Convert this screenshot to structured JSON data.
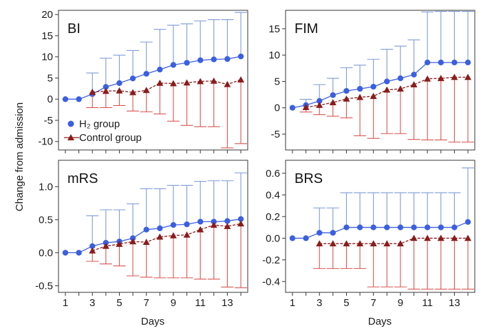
{
  "figure": {
    "ylabel": "Change from admission",
    "xlabel": "Days",
    "colors": {
      "h2": "#3b5fe0",
      "h2_err": "#7d9ad6",
      "control": "#8a1c1c",
      "control_err": "#d9534f",
      "frame": "#333333"
    }
  },
  "legend": {
    "h2_label": "H₂ group",
    "control_label": "Control group"
  },
  "chart_data": [
    {
      "id": "BI",
      "type": "line",
      "title": "BI",
      "x": [
        1,
        2,
        3,
        4,
        5,
        6,
        7,
        8,
        9,
        10,
        11,
        12,
        13,
        14
      ],
      "xticks": [
        1,
        3,
        5,
        7,
        9,
        11,
        13
      ],
      "ylim": [
        -12,
        21
      ],
      "yticks": [
        -10,
        -5,
        0,
        5,
        10,
        15,
        20
      ],
      "show_legend": true,
      "series": [
        {
          "name": "H₂ group",
          "marker": "circle",
          "values": [
            0,
            0,
            1.2,
            2.9,
            3.8,
            4.9,
            6.0,
            7.0,
            8.1,
            8.6,
            9.2,
            9.4,
            9.5,
            10.1
          ],
          "err_upper": [
            null,
            null,
            6.2,
            9.7,
            10.4,
            11.5,
            13.5,
            16.5,
            17.5,
            17.8,
            18.5,
            18.8,
            18.8,
            20.5
          ]
        },
        {
          "name": "Control group",
          "marker": "triangle",
          "values": [
            null,
            null,
            1.7,
            1.9,
            2.0,
            1.6,
            2.1,
            3.8,
            3.7,
            3.9,
            4.2,
            4.3,
            3.5,
            4.6
          ],
          "err_lower": [
            null,
            null,
            -2.0,
            -2.0,
            -1.5,
            -2.8,
            -3.0,
            -3.5,
            -5.2,
            -6.2,
            -6.5,
            -6.5,
            -11.5,
            -10.5
          ]
        }
      ]
    },
    {
      "id": "FIM",
      "type": "line",
      "title": "FIM",
      "x": [
        1,
        2,
        3,
        4,
        5,
        6,
        7,
        8,
        9,
        10,
        11,
        12,
        13,
        14
      ],
      "xticks": [
        1,
        3,
        5,
        7,
        9,
        11,
        13
      ],
      "ylim": [
        -8,
        18.5
      ],
      "yticks": [
        -5,
        0,
        5,
        10,
        15
      ],
      "show_legend": false,
      "series": [
        {
          "name": "H₂ group",
          "marker": "circle",
          "values": [
            0,
            0.5,
            1.3,
            2.4,
            3.2,
            3.6,
            4.0,
            5.0,
            5.6,
            6.3,
            8.6,
            8.6,
            8.6,
            8.6
          ],
          "err_upper": [
            null,
            1.6,
            4.4,
            5.6,
            7.6,
            8.1,
            9.2,
            11.1,
            11.7,
            12.9,
            18.2,
            18.3,
            18.3,
            18.3
          ]
        },
        {
          "name": "Control group",
          "marker": "triangle",
          "values": [
            null,
            0.1,
            0.5,
            1.0,
            1.7,
            2.0,
            2.2,
            3.4,
            3.6,
            4.4,
            5.5,
            5.6,
            5.8,
            5.8
          ],
          "err_lower": [
            null,
            -0.8,
            -1.3,
            -1.6,
            -1.9,
            -5.3,
            -5.8,
            -4.9,
            -4.9,
            -6.0,
            -6.1,
            -6.1,
            -6.5,
            -6.5
          ]
        }
      ]
    },
    {
      "id": "mRS",
      "type": "line",
      "title": "mRS",
      "x": [
        1,
        2,
        3,
        4,
        5,
        6,
        7,
        8,
        9,
        10,
        11,
        12,
        13,
        14
      ],
      "xticks": [
        1,
        3,
        5,
        7,
        9,
        11,
        13
      ],
      "ylim": [
        -0.6,
        1.4
      ],
      "yticks": [
        -0.5,
        0.0,
        0.5,
        1.0
      ],
      "show_legend": false,
      "series": [
        {
          "name": "H₂ group",
          "marker": "circle",
          "values": [
            0,
            0,
            0.1,
            0.15,
            0.17,
            0.22,
            0.35,
            0.37,
            0.42,
            0.43,
            0.47,
            0.47,
            0.48,
            0.51
          ],
          "err_upper": [
            null,
            null,
            0.56,
            0.65,
            0.65,
            0.74,
            0.97,
            0.97,
            1.02,
            1.02,
            1.08,
            1.09,
            1.09,
            1.21
          ]
        },
        {
          "name": "Control group",
          "marker": "triangle",
          "values": [
            null,
            null,
            0.03,
            0.1,
            0.13,
            0.17,
            0.16,
            0.24,
            0.26,
            0.27,
            0.35,
            0.42,
            0.4,
            0.44
          ],
          "err_lower": [
            null,
            null,
            -0.13,
            -0.17,
            -0.2,
            -0.35,
            -0.37,
            -0.38,
            -0.38,
            -0.38,
            -0.4,
            -0.4,
            -0.52,
            -0.53
          ]
        }
      ]
    },
    {
      "id": "BRS",
      "type": "line",
      "title": "BRS",
      "x": [
        1,
        2,
        3,
        4,
        5,
        6,
        7,
        8,
        9,
        10,
        11,
        12,
        13,
        14
      ],
      "xticks": [
        1,
        3,
        5,
        7,
        9,
        11,
        13
      ],
      "ylim": [
        -0.5,
        0.72
      ],
      "yticks": [
        -0.4,
        -0.2,
        0.0,
        0.2,
        0.4,
        0.6
      ],
      "show_legend": false,
      "series": [
        {
          "name": "H₂ group",
          "marker": "circle",
          "values": [
            0,
            0,
            0.05,
            0.05,
            0.1,
            0.1,
            0.1,
            0.1,
            0.1,
            0.1,
            0.1,
            0.1,
            0.1,
            0.15
          ],
          "err_upper": [
            null,
            null,
            0.28,
            0.28,
            0.42,
            0.42,
            0.42,
            0.42,
            0.42,
            0.42,
            0.42,
            0.42,
            0.42,
            0.65
          ]
        },
        {
          "name": "Control group",
          "marker": "triangle",
          "values": [
            null,
            null,
            -0.05,
            -0.05,
            -0.05,
            -0.05,
            -0.05,
            -0.05,
            -0.05,
            0,
            0,
            0,
            0,
            0
          ],
          "err_lower": [
            null,
            null,
            -0.28,
            -0.28,
            -0.28,
            -0.28,
            -0.45,
            -0.45,
            -0.45,
            -0.47,
            -0.47,
            -0.47,
            -0.47,
            -0.47
          ]
        }
      ]
    }
  ]
}
